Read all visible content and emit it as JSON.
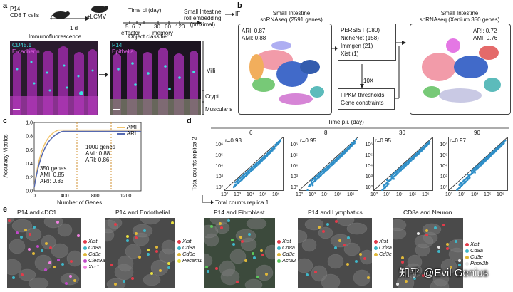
{
  "panel_a": {
    "label": "a",
    "cells_line1": "P14",
    "cells_line2": "CD8 T cells",
    "infection": "+LCMV",
    "day": "1 d",
    "time_title": "Time pi (day)",
    "time_points": [
      "5",
      "6",
      "7",
      "30",
      "60",
      "120"
    ],
    "effector": "effector",
    "memory": "memory",
    "si_line1": "Small Intestine",
    "si_line2": "roll embedding",
    "si_line3": "(proximal)",
    "if_label": "IF",
    "if_title": "Immunofluorescence",
    "oc_title": "Object classifier",
    "legend_cd45": "CD45.1",
    "legend_ecad": "E-cadherin",
    "legend_p14": "P14",
    "legend_epi": "Epithelia",
    "villi": "Villi",
    "crypt": "Crypt",
    "muscularis": "Muscularis",
    "colors": {
      "cyan": "#3fe0e0",
      "magenta": "#d040d8",
      "bg": "#2a1b2e"
    }
  },
  "panel_b": {
    "label": "b",
    "left_title1": "Small Intestine",
    "left_title2": "snRNAseq (2591 genes)",
    "left_ari": "ARI: 0.87",
    "left_ami": "AMI: 0.88",
    "persist": "PERSIST (180)",
    "nichenet": "NicheNet (158)",
    "immgen": "Immgen (21)",
    "xist": "Xist (1)",
    "tenx": "10X",
    "fpkm": "FPKM thresholds",
    "gene_c": "Gene constraints",
    "right_title1": "Small Intestine",
    "right_title2": "snRNAseq (Xenium 350 genes)",
    "right_ari": "ARI: 0.72",
    "right_ami": "AMI: 0.76"
  },
  "panel_c": {
    "label": "c",
    "ylabel": "Accuracy Metrics",
    "xlabel": "Number of Genes",
    "ami_label": "AMI",
    "ari_label": "ARI",
    "ann350_1": "350 genes",
    "ann350_2": "AMI: 0.85",
    "ann350_3": "ARI: 0.83",
    "ann1000_1": "1000 genes",
    "ann1000_2": "AMI: 0.88",
    "ann1000_3": "ARI: 0.86",
    "xticks": [
      "0",
      "400",
      "800",
      "1200"
    ],
    "yticks": [
      "0.0",
      "0.2",
      "0.4",
      "0.6",
      "0.8",
      "1.0"
    ],
    "colors": {
      "ami": "#f2c46a",
      "ari": "#5569b0"
    }
  },
  "panel_d": {
    "label": "d",
    "time_title": "Time p.i. (day)",
    "ylabel": "Total counts replica 2",
    "xlabel": "Total counts replica 1",
    "point_color": "#2f8fc8",
    "subplots": [
      {
        "day": "6",
        "r": "r=0.93"
      },
      {
        "day": "8",
        "r": "r=0.95"
      },
      {
        "day": "30",
        "r": "r=0.95"
      },
      {
        "day": "90",
        "r": "r=0.97"
      }
    ],
    "ticks": [
      "10²",
      "10³",
      "10⁴",
      "10⁵",
      "10⁶"
    ]
  },
  "panel_e": {
    "label": "e",
    "panels": [
      {
        "title": "P14 and cDC1",
        "genes": [
          {
            "name": "Xist",
            "color": "#e23b4a"
          },
          {
            "name": "Cd8a",
            "color": "#3fb6c8"
          },
          {
            "name": "Cd3e",
            "color": "#e0b83a"
          },
          {
            "name": "Clec9a",
            "color": "#c048c8"
          },
          {
            "name": "Xcr1",
            "color": "#f080e0"
          }
        ]
      },
      {
        "title": "P14 and Endothelial",
        "genes": [
          {
            "name": "Xist",
            "color": "#e23b4a"
          },
          {
            "name": "Cd8a",
            "color": "#3fb6c8"
          },
          {
            "name": "Cd3e",
            "color": "#e0b83a"
          },
          {
            "name": "Pecam1",
            "color": "#e8e040"
          }
        ]
      },
      {
        "title": "P14 and Fibroblast",
        "genes": [
          {
            "name": "Xist",
            "color": "#e23b4a"
          },
          {
            "name": "Cd8a",
            "color": "#3fb6c8"
          },
          {
            "name": "Cd3e",
            "color": "#e0b83a"
          },
          {
            "name": "Acta2",
            "color": "#5cc85c"
          }
        ]
      },
      {
        "title": "P14 and Lymphatics",
        "genes": [
          {
            "name": "Xist",
            "color": "#e23b4a"
          },
          {
            "name": "Cd8a",
            "color": "#3fb6c8"
          },
          {
            "name": "Cd3e",
            "color": "#e0b83a"
          }
        ]
      },
      {
        "title": "CD8a and Neuron",
        "genes": [
          {
            "name": "Xist",
            "color": "#e23b4a"
          },
          {
            "name": "Cd8a",
            "color": "#3fb6c8"
          },
          {
            "name": "Cd3e",
            "color": "#e0b83a"
          },
          {
            "name": "Phox2b",
            "color": "#e8e8e8"
          }
        ]
      }
    ]
  },
  "watermark": "知乎 @Evil Genius"
}
